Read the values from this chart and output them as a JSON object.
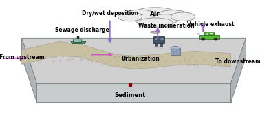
{
  "labels": {
    "air": "Air",
    "dry_wet": "Dry/wet deposition",
    "waste_inc": "Waste incineration",
    "vehicle": "Vehicle exhaust",
    "sewage": "Sewage discharge",
    "urbanization": "Urbanization",
    "from_upstream": "From upstream",
    "to_downstream": "To downstream",
    "sediment": "Sediment"
  },
  "arrow_color_h": "#cc55cc",
  "arrow_color_v": "#9966dd",
  "platform_top": "#d0d0d0",
  "platform_side": "#b0b4b8",
  "platform_front": "#c8cccc",
  "platform_edge": "#808888",
  "river_fill": "#c8c0a0",
  "river_dot": "#a89878",
  "cloud_face": "#ebebeb",
  "cloud_edge": "#909090",
  "car_color": "#55bb33",
  "factory_color": "#445566",
  "building_color": "#8888bb"
}
